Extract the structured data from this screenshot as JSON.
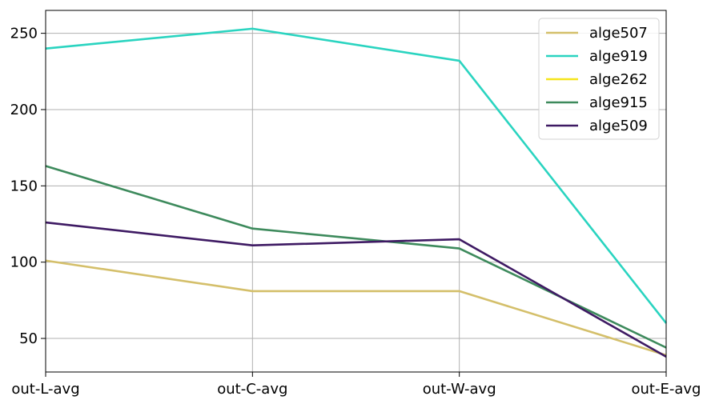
{
  "chart_data": {
    "type": "line",
    "title": "",
    "xlabel": "",
    "ylabel": "",
    "categories": [
      "out-L-avg",
      "out-C-avg",
      "out-W-avg",
      "out-E-avg"
    ],
    "ylim": [
      28,
      265
    ],
    "yticks": [
      50,
      100,
      150,
      200,
      250
    ],
    "grid": true,
    "legend_position": "top-right",
    "series": [
      {
        "name": "alge507",
        "color": "#d4bf6a",
        "values": [
          101,
          81,
          81,
          39
        ]
      },
      {
        "name": "alge919",
        "color": "#2ad4c0",
        "values": [
          240,
          253,
          232,
          60
        ]
      },
      {
        "name": "alge262",
        "color": "#f5e51b",
        "values": [
          null,
          null,
          null,
          null
        ]
      },
      {
        "name": "alge915",
        "color": "#3d8a5c",
        "values": [
          163,
          122,
          109,
          44
        ]
      },
      {
        "name": "alge509",
        "color": "#3e1a63",
        "values": [
          126,
          111,
          115,
          38
        ]
      }
    ]
  }
}
